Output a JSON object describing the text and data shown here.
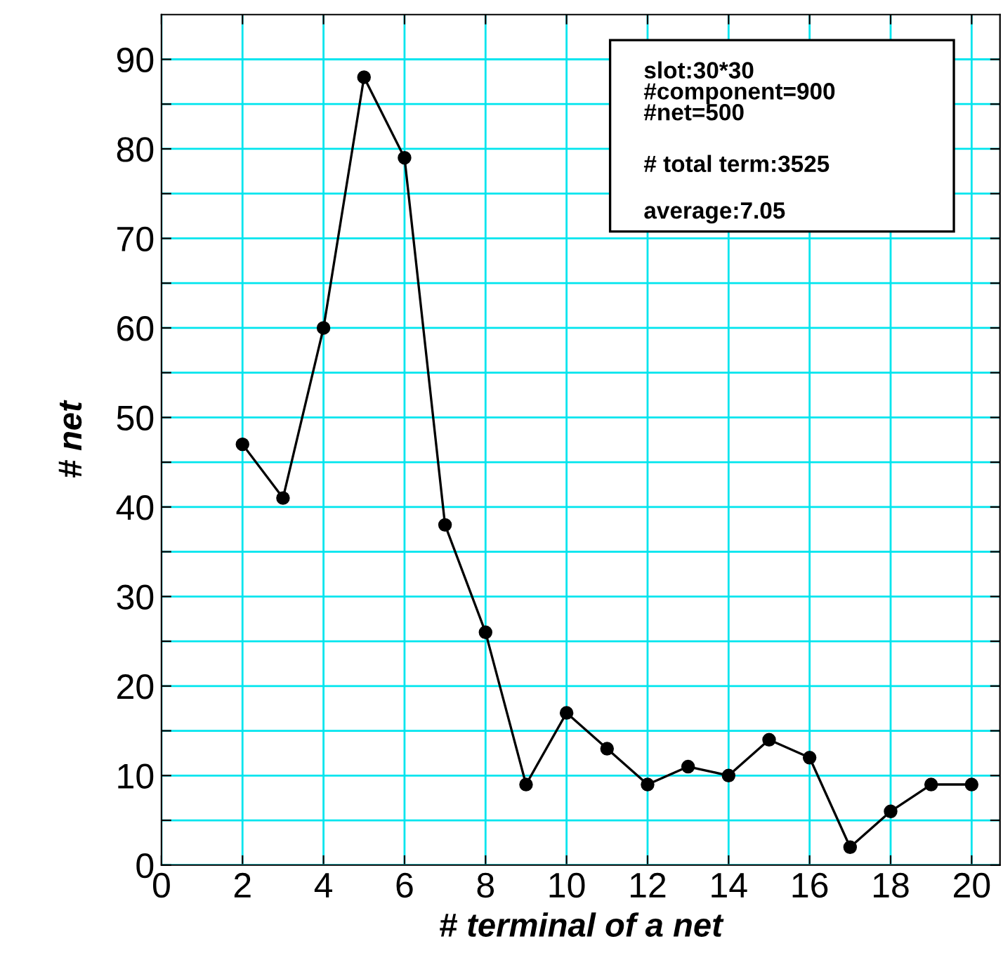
{
  "chart_data": {
    "type": "line",
    "xlabel": "# terminal of a net",
    "ylabel": "# net",
    "x": [
      2,
      3,
      4,
      5,
      6,
      7,
      8,
      9,
      10,
      11,
      12,
      13,
      14,
      15,
      16,
      17,
      18,
      19,
      20
    ],
    "series": [
      {
        "color": "#000000",
        "values": [
          47,
          41,
          60,
          88,
          79,
          38,
          26,
          9,
          17,
          13,
          9,
          11,
          10,
          14,
          12,
          2,
          6,
          9,
          9
        ]
      }
    ],
    "marker": "circle",
    "line_style": "solid",
    "grid": true,
    "legend": false,
    "xlim": [
      0,
      20.7
    ],
    "ylim": [
      0,
      95
    ],
    "xticks": [
      0,
      2,
      4,
      6,
      8,
      10,
      12,
      14,
      16,
      18,
      20
    ],
    "yticks": [
      0,
      {
        "value": 5,
        "label": null
      },
      10,
      {
        "value": 15,
        "label": null
      },
      20,
      {
        "value": 25,
        "label": null
      },
      30,
      {
        "value": 35,
        "label": null
      },
      40,
      {
        "value": 45,
        "label": null
      },
      50,
      {
        "value": 55,
        "label": null
      },
      60,
      {
        "value": 65,
        "label": null
      },
      70,
      {
        "value": 75,
        "label": null
      },
      80,
      {
        "value": 85,
        "label": null
      },
      90
    ],
    "annotations": [
      "slot:30*30\n#component=900\n#net=500",
      "# total term:3525",
      "average:7.05"
    ]
  }
}
